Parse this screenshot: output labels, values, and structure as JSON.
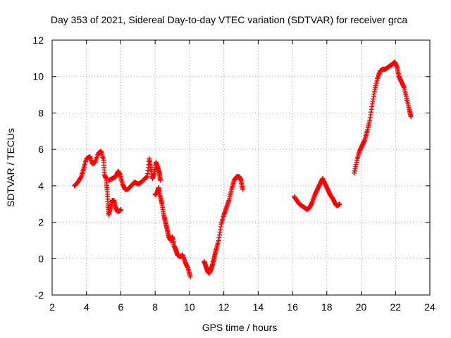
{
  "chart_data": {
    "type": "scatter",
    "title": "Day 353 of 2021, Sidereal Day-to-day VTEC variation (SDTVAR) for receiver grca",
    "xlabel": "GPS time / hours",
    "ylabel": "SDTVAR / TECUs",
    "xlim": [
      2,
      24
    ],
    "ylim": [
      -2,
      12
    ],
    "xticks": [
      2,
      4,
      6,
      8,
      10,
      12,
      14,
      16,
      18,
      20,
      22,
      24
    ],
    "yticks": [
      -2,
      0,
      2,
      4,
      6,
      8,
      10,
      12
    ],
    "grid": true,
    "marker": "plus",
    "color": "#ff0000",
    "segments": [
      [
        [
          3.3,
          4.0
        ],
        [
          3.5,
          4.2
        ],
        [
          3.7,
          4.5
        ],
        [
          3.85,
          5.0
        ],
        [
          4.0,
          5.5
        ],
        [
          4.2,
          5.6
        ],
        [
          4.35,
          5.2
        ],
        [
          4.5,
          5.3
        ],
        [
          4.7,
          5.8
        ],
        [
          4.85,
          5.9
        ],
        [
          5.0,
          5.4
        ],
        [
          5.05,
          4.6
        ],
        [
          5.15,
          4.4
        ],
        [
          5.2,
          3.8
        ],
        [
          5.25,
          3.0
        ],
        [
          5.3,
          2.4
        ],
        [
          5.4,
          2.8
        ],
        [
          5.5,
          3.2
        ],
        [
          5.6,
          3.2
        ],
        [
          5.7,
          2.8
        ],
        [
          5.8,
          2.6
        ],
        [
          5.9,
          2.6
        ],
        [
          6.0,
          2.7
        ]
      ],
      [
        [
          5.3,
          4.3
        ],
        [
          5.5,
          4.4
        ],
        [
          5.7,
          4.5
        ],
        [
          5.85,
          4.8
        ],
        [
          5.95,
          4.6
        ],
        [
          6.1,
          4.1
        ],
        [
          6.25,
          3.8
        ],
        [
          6.4,
          3.8
        ],
        [
          6.6,
          4.0
        ],
        [
          6.8,
          4.2
        ],
        [
          7.0,
          4.1
        ],
        [
          7.2,
          4.2
        ],
        [
          7.4,
          4.4
        ],
        [
          7.55,
          4.5
        ],
        [
          7.65,
          5.5
        ],
        [
          7.75,
          5.0
        ],
        [
          7.85,
          4.4
        ],
        [
          7.95,
          4.7
        ],
        [
          8.05,
          5.3
        ],
        [
          8.15,
          5.0
        ],
        [
          8.25,
          4.7
        ],
        [
          8.3,
          4.3
        ]
      ],
      [
        [
          8.0,
          3.5
        ],
        [
          8.1,
          3.6
        ],
        [
          8.2,
          3.9
        ],
        [
          8.3,
          3.4
        ],
        [
          8.4,
          3.0
        ],
        [
          8.5,
          2.4
        ],
        [
          8.6,
          2.0
        ],
        [
          8.7,
          1.6
        ],
        [
          8.8,
          1.2
        ],
        [
          8.9,
          1.0
        ],
        [
          9.0,
          1.2
        ],
        [
          9.1,
          0.7
        ],
        [
          9.2,
          0.5
        ],
        [
          9.3,
          0.2
        ],
        [
          9.45,
          0.1
        ],
        [
          9.6,
          0.2
        ],
        [
          9.75,
          -0.2
        ],
        [
          9.9,
          -0.5
        ],
        [
          10.05,
          -1.0
        ]
      ],
      [
        [
          10.85,
          -0.15
        ],
        [
          10.95,
          -0.4
        ],
        [
          11.05,
          -0.7
        ],
        [
          11.15,
          -0.8
        ],
        [
          11.25,
          -0.6
        ],
        [
          11.35,
          -0.3
        ],
        [
          11.45,
          0.1
        ],
        [
          11.55,
          0.5
        ],
        [
          11.7,
          1.0
        ],
        [
          11.85,
          1.9
        ],
        [
          12.0,
          2.4
        ],
        [
          12.15,
          2.8
        ],
        [
          12.3,
          3.2
        ],
        [
          12.45,
          3.8
        ],
        [
          12.6,
          4.3
        ],
        [
          12.75,
          4.5
        ],
        [
          12.9,
          4.5
        ],
        [
          13.0,
          4.3
        ],
        [
          13.1,
          3.8
        ]
      ],
      [
        [
          16.1,
          3.4
        ],
        [
          16.25,
          3.2
        ],
        [
          16.4,
          3.0
        ],
        [
          16.55,
          2.9
        ],
        [
          16.7,
          2.8
        ],
        [
          16.85,
          2.7
        ],
        [
          17.0,
          2.8
        ],
        [
          17.15,
          3.1
        ],
        [
          17.3,
          3.5
        ],
        [
          17.45,
          3.8
        ],
        [
          17.6,
          4.1
        ],
        [
          17.75,
          4.4
        ],
        [
          17.9,
          4.1
        ],
        [
          18.05,
          3.8
        ],
        [
          18.2,
          3.5
        ],
        [
          18.35,
          3.3
        ],
        [
          18.5,
          3.0
        ],
        [
          18.6,
          2.9
        ],
        [
          18.75,
          3.0
        ]
      ],
      [
        [
          19.6,
          4.7
        ],
        [
          19.75,
          5.4
        ],
        [
          19.9,
          5.9
        ],
        [
          20.05,
          6.2
        ],
        [
          20.2,
          6.5
        ],
        [
          20.35,
          7.0
        ],
        [
          20.5,
          7.6
        ],
        [
          20.65,
          8.5
        ],
        [
          20.8,
          9.3
        ],
        [
          20.95,
          9.9
        ],
        [
          21.1,
          10.3
        ],
        [
          21.25,
          10.4
        ],
        [
          21.4,
          10.4
        ],
        [
          21.55,
          10.5
        ],
        [
          21.7,
          10.6
        ],
        [
          21.85,
          10.7
        ],
        [
          21.95,
          10.8
        ],
        [
          22.1,
          10.5
        ],
        [
          22.2,
          10.0
        ],
        [
          22.35,
          9.7
        ],
        [
          22.5,
          9.4
        ],
        [
          22.65,
          8.8
        ],
        [
          22.8,
          8.2
        ],
        [
          22.9,
          7.8
        ]
      ]
    ]
  }
}
